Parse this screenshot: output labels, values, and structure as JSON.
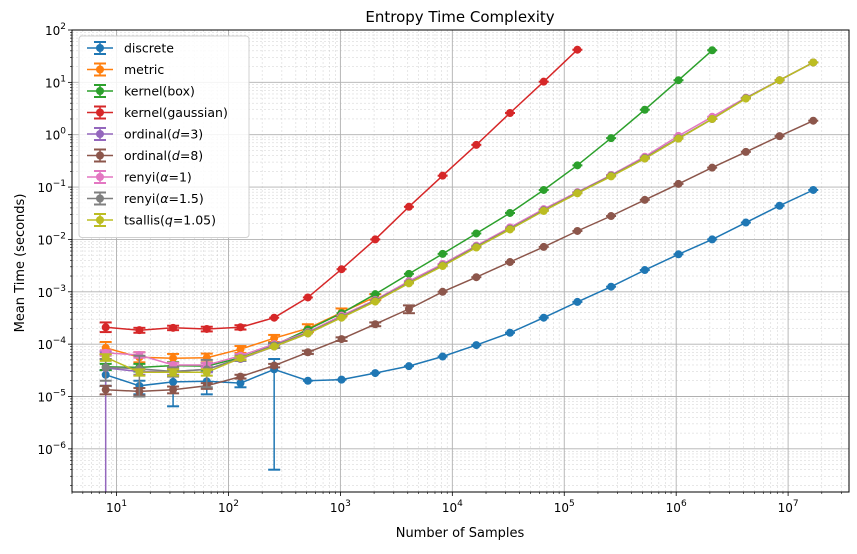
{
  "chart_data": {
    "type": "line",
    "title": "Entropy Time Complexity",
    "xlabel": "Number of Samples",
    "ylabel": "Mean Time (seconds)",
    "xscale": "log",
    "yscale": "log",
    "xlim": [
      4,
      35000000
    ],
    "ylim": [
      1.5e-07,
      100
    ],
    "grid": "major and minor",
    "legend_position": "top-left",
    "x_ticks": [
      {
        "value": 10,
        "base": "10",
        "exp": "1"
      },
      {
        "value": 100,
        "base": "10",
        "exp": "2"
      },
      {
        "value": 1000,
        "base": "10",
        "exp": "3"
      },
      {
        "value": 10000,
        "base": "10",
        "exp": "4"
      },
      {
        "value": 100000,
        "base": "10",
        "exp": "5"
      },
      {
        "value": 1000000,
        "base": "10",
        "exp": "6"
      },
      {
        "value": 10000000,
        "base": "10",
        "exp": "7"
      }
    ],
    "y_ticks": [
      {
        "value": 1e-06,
        "base": "10",
        "exp": "−6"
      },
      {
        "value": 1e-05,
        "base": "10",
        "exp": "−5"
      },
      {
        "value": 0.0001,
        "base": "10",
        "exp": "−4"
      },
      {
        "value": 0.001,
        "base": "10",
        "exp": "−3"
      },
      {
        "value": 0.01,
        "base": "10",
        "exp": "−2"
      },
      {
        "value": 0.1,
        "base": "10",
        "exp": "−1"
      },
      {
        "value": 1,
        "base": "10",
        "exp": "0"
      },
      {
        "value": 10,
        "base": "10",
        "exp": "1"
      },
      {
        "value": 100,
        "base": "10",
        "exp": "2"
      }
    ],
    "series": [
      {
        "name": "discrete",
        "label_parts": {
          "pre": "discrete",
          "ital": "",
          "post": ""
        },
        "color": "#1f77b4",
        "x": [
          8,
          16,
          32,
          64,
          128,
          256,
          512,
          1024,
          2048,
          4096,
          8192,
          16384,
          32768,
          65536,
          131072,
          262144,
          524288,
          1048576,
          2097152,
          4194304,
          8388608,
          16777216
        ],
        "y": [
          2.6e-05,
          1.6e-05,
          1.9e-05,
          1.95e-05,
          1.8e-05,
          3.3e-05,
          2e-05,
          2.1e-05,
          2.8e-05,
          3.8e-05,
          5.8e-05,
          9.6e-05,
          0.000165,
          0.00032,
          0.00064,
          0.00125,
          0.0026,
          0.0052,
          0.01,
          0.021,
          0.044,
          0.088
        ],
        "err_low": [
          1.6e-05,
          1.1e-05,
          6.5e-06,
          1.1e-05,
          1.5e-05,
          4e-07,
          null,
          null,
          null,
          null,
          null,
          null,
          null,
          null,
          null,
          null,
          null,
          null,
          null,
          null,
          null,
          null
        ],
        "err_high": [
          3.2e-05,
          2e-05,
          3e-05,
          3e-05,
          2.2e-05,
          5.2e-05,
          null,
          null,
          null,
          null,
          null,
          null,
          null,
          null,
          null,
          null,
          null,
          null,
          null,
          null,
          null,
          null
        ]
      },
      {
        "name": "metric",
        "label_parts": {
          "pre": "metric",
          "ital": "",
          "post": ""
        },
        "color": "#ff7f0e",
        "x": [
          8,
          16,
          32,
          64,
          128,
          256,
          512,
          1024,
          2048
        ],
        "y": [
          8.5e-05,
          5.6e-05,
          5.4e-05,
          5.5e-05,
          8e-05,
          0.00013,
          0.0002,
          0.0004,
          0.0008
        ],
        "err_low": [
          6.5e-05,
          4.5e-05,
          4.5e-05,
          4.5e-05,
          6.8e-05,
          0.00011,
          0.00017,
          0.00034,
          0.0007
        ],
        "err_high": [
          0.00011,
          7e-05,
          6.5e-05,
          6.6e-05,
          9.2e-05,
          0.00015,
          0.00024,
          0.00048,
          0.0009
        ]
      },
      {
        "name": "kernel(box)",
        "label_parts": {
          "pre": "kernel(box)",
          "ital": "",
          "post": ""
        },
        "color": "#2ca02c",
        "x": [
          8,
          16,
          32,
          64,
          128,
          256,
          512,
          1024,
          2048,
          4096,
          8192,
          16384,
          32768,
          65536,
          131072,
          262144,
          524288,
          1048576,
          2097152
        ],
        "y": [
          3.7e-05,
          3.6e-05,
          3.9e-05,
          3.8e-05,
          5.5e-05,
          9.5e-05,
          0.00019,
          0.00039,
          0.0009,
          0.0022,
          0.0053,
          0.013,
          0.032,
          0.088,
          0.26,
          0.86,
          3.0,
          11.0,
          41.0
        ],
        "err_low": [
          3.2e-05,
          3e-05,
          3.3e-05,
          3.2e-05,
          5e-05,
          8.5e-05,
          null,
          null,
          null,
          null,
          null,
          null,
          null,
          null,
          null,
          null,
          null,
          null,
          null
        ],
        "err_high": [
          4.2e-05,
          4.2e-05,
          4.5e-05,
          4.4e-05,
          6e-05,
          0.000105,
          null,
          null,
          null,
          null,
          null,
          null,
          null,
          null,
          null,
          null,
          null,
          null,
          null
        ]
      },
      {
        "name": "kernel(gaussian)",
        "label_parts": {
          "pre": "kernel(gaussian)",
          "ital": "",
          "post": ""
        },
        "color": "#d62728",
        "x": [
          8,
          16,
          32,
          64,
          128,
          256,
          512,
          1024,
          2048,
          4096,
          8192,
          16384,
          32768,
          65536,
          131072
        ],
        "y": [
          0.00021,
          0.000185,
          0.000205,
          0.000195,
          0.00021,
          0.00032,
          0.00078,
          0.0027,
          0.01,
          0.042,
          0.165,
          0.64,
          2.6,
          10.3,
          42.0
        ],
        "err_low": [
          0.00017,
          0.000165,
          0.000185,
          0.000175,
          0.00019,
          null,
          null,
          null,
          null,
          null,
          null,
          null,
          null,
          null,
          null
        ],
        "err_high": [
          0.00026,
          0.000205,
          0.000225,
          0.000215,
          0.00023,
          null,
          null,
          null,
          null,
          null,
          null,
          null,
          null,
          null,
          null
        ]
      },
      {
        "name": "ordinal(d=3)",
        "label_parts": {
          "pre": "ordinal(",
          "ital": "d",
          "post": "=3)"
        },
        "color": "#9467bd",
        "x": [
          8,
          16,
          32,
          64,
          128,
          256,
          512,
          1024,
          2048,
          4096,
          8192,
          16384,
          32768,
          65536,
          131072,
          262144,
          524288,
          1048576,
          2097152,
          4194304,
          8388608,
          16777216
        ],
        "y": [
          3.5e-05,
          3e-05,
          3e-05,
          3.3e-05,
          5.2e-05,
          9e-05,
          0.00016,
          0.00033,
          0.00068,
          0.0015,
          0.0032,
          0.0072,
          0.016,
          0.036,
          0.078,
          0.165,
          0.35,
          0.85,
          2.0,
          5.0,
          11.0,
          24.0
        ],
        "err_low": [
          1e-08,
          2.6e-05,
          2.6e-05,
          2.9e-05,
          4.8e-05,
          8.5e-05,
          null,
          null,
          null,
          null,
          null,
          null,
          null,
          null,
          null,
          null,
          null,
          null,
          null,
          null,
          null,
          null
        ],
        "err_high": [
          7e-05,
          3.4e-05,
          3.4e-05,
          3.7e-05,
          5.6e-05,
          9.5e-05,
          null,
          null,
          null,
          null,
          null,
          null,
          null,
          null,
          null,
          null,
          null,
          null,
          null,
          null,
          null,
          null
        ]
      },
      {
        "name": "ordinal(d=8)",
        "label_parts": {
          "pre": "ordinal(",
          "ital": "d",
          "post": "=8)"
        },
        "color": "#8c564b",
        "x": [
          8,
          16,
          32,
          64,
          128,
          256,
          512,
          1024,
          2048,
          4096,
          8192,
          16384,
          32768,
          65536,
          131072,
          262144,
          524288,
          1048576,
          2097152,
          4194304,
          8388608,
          16777216
        ],
        "y": [
          1.35e-05,
          1.25e-05,
          1.35e-05,
          1.6e-05,
          2.4e-05,
          3.9e-05,
          7e-05,
          0.000125,
          0.00024,
          0.00047,
          0.001,
          0.0019,
          0.0037,
          0.0072,
          0.0145,
          0.028,
          0.057,
          0.115,
          0.235,
          0.47,
          0.94,
          1.85
        ],
        "err_low": [
          1.1e-05,
          1.05e-05,
          1.15e-05,
          1.4e-05,
          2.2e-05,
          3.6e-05,
          6.5e-05,
          0.000115,
          0.00022,
          0.00039,
          null,
          null,
          null,
          null,
          null,
          null,
          null,
          null,
          null,
          null,
          null,
          null
        ],
        "err_high": [
          1.6e-05,
          1.45e-05,
          1.55e-05,
          1.8e-05,
          2.6e-05,
          4.2e-05,
          7.5e-05,
          0.000135,
          0.00026,
          0.00055,
          null,
          null,
          null,
          null,
          null,
          null,
          null,
          null,
          null,
          null,
          null,
          null
        ]
      },
      {
        "name": "renyi(α=1)",
        "label_parts": {
          "pre": "renyi(",
          "ital": "α",
          "post": "=1)"
        },
        "color": "#e377c2",
        "x": [
          8,
          16,
          32,
          64,
          128,
          256,
          512,
          1024,
          2048,
          4096,
          8192,
          16384,
          32768,
          65536,
          131072,
          262144,
          524288,
          1048576,
          2097152,
          4194304,
          8388608,
          16777216
        ],
        "y": [
          6.8e-05,
          6.2e-05,
          4e-05,
          4e-05,
          6e-05,
          0.0001,
          0.00017,
          0.00035,
          0.0007,
          0.0016,
          0.0034,
          0.0076,
          0.017,
          0.038,
          0.08,
          0.17,
          0.38,
          0.95,
          2.2,
          5.1,
          11.0,
          24.0
        ],
        "err_low": [
          6e-05,
          5.5e-05,
          3.6e-05,
          3.6e-05,
          5.5e-05,
          null,
          null,
          null,
          null,
          null,
          null,
          null,
          null,
          null,
          null,
          null,
          null,
          null,
          null,
          null,
          null,
          null
        ],
        "err_high": [
          7.6e-05,
          7e-05,
          4.4e-05,
          4.4e-05,
          6.5e-05,
          null,
          null,
          null,
          null,
          null,
          null,
          null,
          null,
          null,
          null,
          null,
          null,
          null,
          null,
          null,
          null,
          null
        ]
      },
      {
        "name": "renyi(α=1.5)",
        "label_parts": {
          "pre": "renyi(",
          "ital": "α",
          "post": "=1.5)"
        },
        "color": "#7f7f7f",
        "x": [
          8,
          16,
          32,
          64,
          128,
          256,
          512,
          1024,
          2048,
          4096,
          8192,
          16384,
          32768,
          65536,
          131072,
          262144,
          524288,
          1048576,
          2097152,
          4194304,
          8388608,
          16777216
        ],
        "y": [
          3.6e-05,
          3.4e-05,
          3e-05,
          3.3e-05,
          5.4e-05,
          9.5e-05,
          0.000165,
          0.00033,
          0.00068,
          0.0015,
          0.0032,
          0.0073,
          0.016,
          0.036,
          0.078,
          0.165,
          0.36,
          0.86,
          2.0,
          5.0,
          11.0,
          24.0
        ],
        "err_low": [
          2e-05,
          1e-05,
          2.4e-05,
          1.5e-05,
          4.8e-05,
          8.5e-05,
          null,
          null,
          null,
          null,
          null,
          null,
          null,
          null,
          null,
          null,
          null,
          null,
          null,
          null,
          null,
          null
        ],
        "err_high": [
          5.2e-05,
          6e-05,
          3.6e-05,
          5e-05,
          6e-05,
          0.000105,
          null,
          null,
          null,
          null,
          null,
          null,
          null,
          null,
          null,
          null,
          null,
          null,
          null,
          null,
          null,
          null
        ]
      },
      {
        "name": "tsallis(q=1.05)",
        "label_parts": {
          "pre": "tsallis(",
          "ital": "q",
          "post": "=1.05)"
        },
        "color": "#bcbd22",
        "x": [
          8,
          16,
          32,
          64,
          128,
          256,
          512,
          1024,
          2048,
          4096,
          8192,
          16384,
          32768,
          65536,
          131072,
          262144,
          524288,
          1048576,
          2097152,
          4194304,
          8388608,
          16777216
        ],
        "y": [
          5.6e-05,
          2.9e-05,
          2.9e-05,
          2.9e-05,
          5.4e-05,
          9e-05,
          0.00016,
          0.00032,
          0.00065,
          0.00145,
          0.0031,
          0.007,
          0.0155,
          0.035,
          0.076,
          0.16,
          0.35,
          0.84,
          2.0,
          4.9,
          11.0,
          24.0
        ],
        "err_low": [
          4.8e-05,
          2.5e-05,
          2.5e-05,
          2.5e-05,
          5e-05,
          null,
          null,
          null,
          null,
          null,
          null,
          null,
          null,
          null,
          null,
          null,
          null,
          null,
          null,
          null,
          null,
          null
        ],
        "err_high": [
          6.4e-05,
          3.3e-05,
          3.3e-05,
          3.3e-05,
          5.8e-05,
          null,
          null,
          null,
          null,
          null,
          null,
          null,
          null,
          null,
          null,
          null,
          null,
          null,
          null,
          null,
          null,
          null
        ]
      }
    ]
  }
}
